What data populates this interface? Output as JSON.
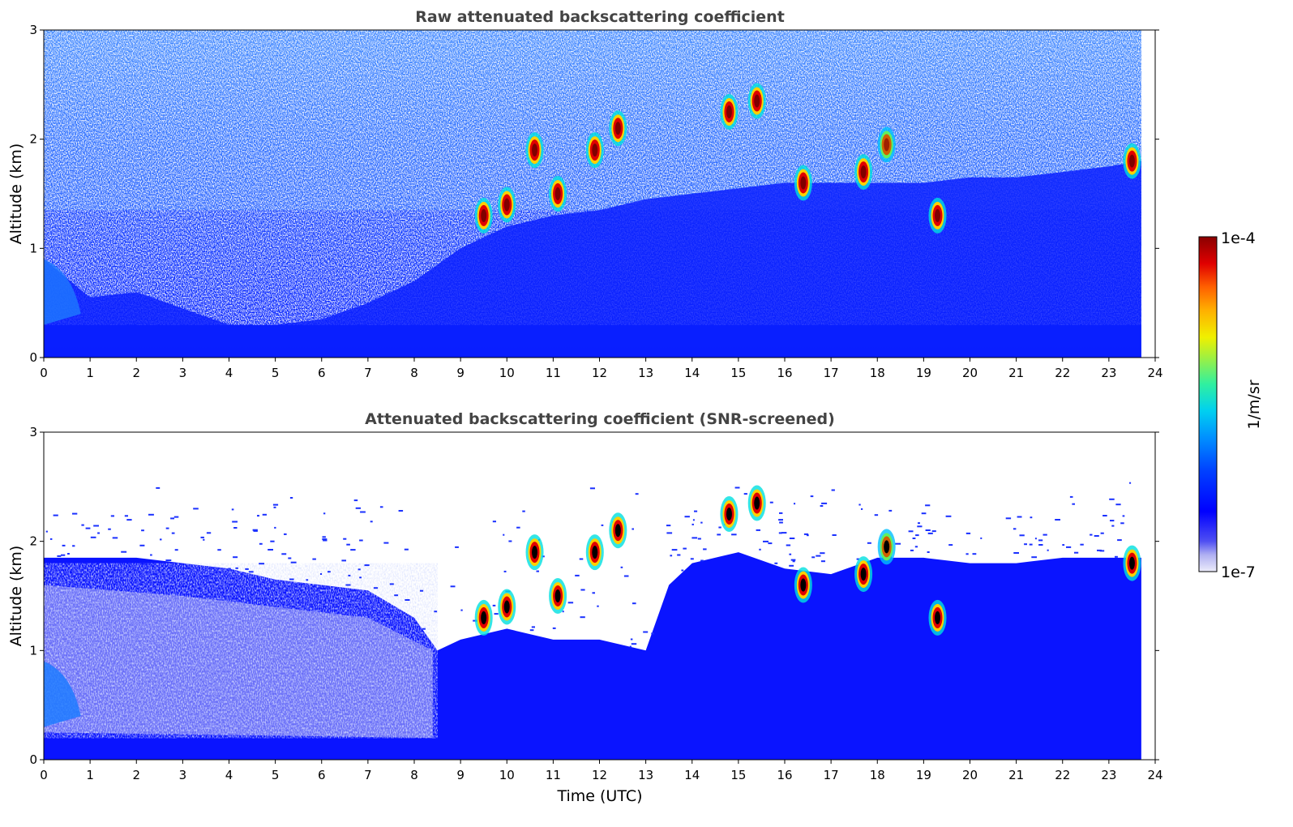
{
  "chart_data": [
    {
      "type": "heatmap",
      "title": "Raw attenuated backscattering coefficient",
      "xlabel": "",
      "ylabel": "Altitude (km)",
      "xlim": [
        0,
        24
      ],
      "ylim": [
        0,
        3
      ],
      "x_ticks": [
        "0",
        "1",
        "2",
        "3",
        "4",
        "5",
        "6",
        "7",
        "8",
        "9",
        "10",
        "11",
        "12",
        "13",
        "14",
        "15",
        "16",
        "17",
        "18",
        "19",
        "20",
        "21",
        "22",
        "23",
        "24"
      ],
      "y_ticks": [
        "0",
        "1",
        "2",
        "3"
      ],
      "data_end_time": 23.7,
      "boundary_layer_top_km": [
        [
          0,
          0.9
        ],
        [
          1,
          0.55
        ],
        [
          2,
          0.6
        ],
        [
          3,
          0.45
        ],
        [
          4,
          0.3
        ],
        [
          5,
          0.3
        ],
        [
          6,
          0.35
        ],
        [
          7,
          0.5
        ],
        [
          8,
          0.7
        ],
        [
          9,
          1.0
        ],
        [
          10,
          1.2
        ],
        [
          11,
          1.3
        ],
        [
          12,
          1.35
        ],
        [
          13,
          1.45
        ],
        [
          14,
          1.5
        ],
        [
          15,
          1.55
        ],
        [
          16,
          1.6
        ],
        [
          17,
          1.6
        ],
        [
          18,
          1.6
        ],
        [
          19,
          1.6
        ],
        [
          20,
          1.65
        ],
        [
          21,
          1.65
        ],
        [
          22,
          1.7
        ],
        [
          23,
          1.75
        ],
        [
          23.7,
          1.8
        ]
      ],
      "cloud_features": [
        {
          "time": 9.5,
          "alt": 1.3,
          "level": "high"
        },
        {
          "time": 10.0,
          "alt": 1.4,
          "level": "high"
        },
        {
          "time": 10.6,
          "alt": 1.9,
          "level": "high"
        },
        {
          "time": 11.1,
          "alt": 1.5,
          "level": "high"
        },
        {
          "time": 11.9,
          "alt": 1.9,
          "level": "high"
        },
        {
          "time": 12.4,
          "alt": 2.1,
          "level": "high"
        },
        {
          "time": 14.8,
          "alt": 2.25,
          "level": "high"
        },
        {
          "time": 15.4,
          "alt": 2.35,
          "level": "high"
        },
        {
          "time": 16.4,
          "alt": 1.6,
          "level": "high"
        },
        {
          "time": 17.7,
          "alt": 1.7,
          "level": "high"
        },
        {
          "time": 18.2,
          "alt": 1.95,
          "level": "medium"
        },
        {
          "time": 19.3,
          "alt": 1.3,
          "level": "high"
        },
        {
          "time": 23.5,
          "alt": 1.8,
          "level": "high"
        }
      ]
    },
    {
      "type": "heatmap",
      "title": "Attenuated backscattering coefficient (SNR-screened)",
      "xlabel": "Time (UTC)",
      "ylabel": "Altitude (km)",
      "xlim": [
        0,
        24
      ],
      "ylim": [
        0,
        3
      ],
      "x_ticks": [
        "0",
        "1",
        "2",
        "3",
        "4",
        "5",
        "6",
        "7",
        "8",
        "9",
        "10",
        "11",
        "12",
        "13",
        "14",
        "15",
        "16",
        "17",
        "18",
        "19",
        "20",
        "21",
        "22",
        "23",
        "24"
      ],
      "y_ticks": [
        "0",
        "1",
        "2",
        "3"
      ],
      "data_end_time": 23.7,
      "screened_top_km": [
        [
          0,
          1.85
        ],
        [
          1,
          1.85
        ],
        [
          2,
          1.85
        ],
        [
          3,
          1.8
        ],
        [
          4,
          1.75
        ],
        [
          5,
          1.65
        ],
        [
          6,
          1.6
        ],
        [
          7,
          1.55
        ],
        [
          8,
          1.3
        ],
        [
          8.5,
          1.0
        ],
        [
          9,
          1.1
        ],
        [
          10,
          1.2
        ],
        [
          11,
          1.1
        ],
        [
          12,
          1.1
        ],
        [
          13,
          1.0
        ],
        [
          13.5,
          1.6
        ],
        [
          14,
          1.8
        ],
        [
          15,
          1.9
        ],
        [
          16,
          1.75
        ],
        [
          17,
          1.7
        ],
        [
          18,
          1.85
        ],
        [
          19,
          1.85
        ],
        [
          20,
          1.8
        ],
        [
          21,
          1.8
        ],
        [
          22,
          1.85
        ],
        [
          23,
          1.85
        ],
        [
          23.7,
          1.85
        ]
      ],
      "cloud_features": [
        {
          "time": 9.5,
          "alt": 1.3,
          "level": "high"
        },
        {
          "time": 10.0,
          "alt": 1.4,
          "level": "high"
        },
        {
          "time": 10.6,
          "alt": 1.9,
          "level": "high"
        },
        {
          "time": 11.1,
          "alt": 1.5,
          "level": "high"
        },
        {
          "time": 11.9,
          "alt": 1.9,
          "level": "high"
        },
        {
          "time": 12.4,
          "alt": 2.1,
          "level": "high"
        },
        {
          "time": 14.8,
          "alt": 2.25,
          "level": "high"
        },
        {
          "time": 15.4,
          "alt": 2.35,
          "level": "high"
        },
        {
          "time": 16.4,
          "alt": 1.6,
          "level": "high"
        },
        {
          "time": 17.7,
          "alt": 1.7,
          "level": "high"
        },
        {
          "time": 18.2,
          "alt": 1.95,
          "level": "medium"
        },
        {
          "time": 19.3,
          "alt": 1.3,
          "level": "high"
        },
        {
          "time": 23.5,
          "alt": 1.8,
          "level": "high"
        }
      ]
    }
  ],
  "colorbar": {
    "label": "1/m/sr",
    "max_label": "1e-4",
    "min_label": "1e-7",
    "colors": [
      "#e8e8f8",
      "#b8b8f0",
      "#6060f0",
      "#0000ff",
      "#0030ff",
      "#0080ff",
      "#00c0ff",
      "#00e8e0",
      "#40f0a0",
      "#a0f040",
      "#f0f000",
      "#ffc000",
      "#ff8000",
      "#ff4000",
      "#e00000",
      "#900000"
    ]
  }
}
